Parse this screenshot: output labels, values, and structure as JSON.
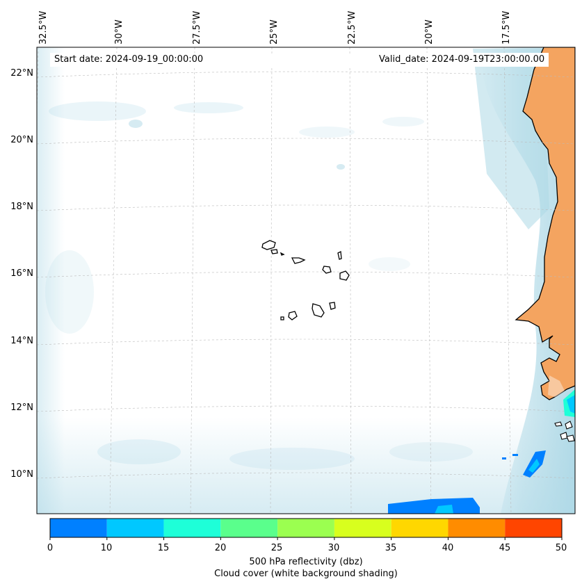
{
  "map": {
    "start_date": "Start date: 2024-09-19_00:00:00",
    "valid_date": "Valid_date: 2024-09-19T23:00:00.00",
    "longitude_labels": [
      "32.5°W",
      "30°W",
      "27.5°W",
      "25°W",
      "22.5°W",
      "20°W",
      "17.5°W"
    ],
    "latitude_labels": [
      "22°N",
      "20°N",
      "18°N",
      "16°N",
      "14°N",
      "12°N",
      "10°N"
    ],
    "cloud_color": "#add8e6",
    "land_color": "#f4a460",
    "coastline_color": "#000000"
  },
  "colorbar": {
    "ticks": [
      "0",
      "10",
      "15",
      "20",
      "25",
      "30",
      "35",
      "40",
      "45",
      "50"
    ],
    "colors": [
      "#0080ff",
      "#00c8ff",
      "#1effd8",
      "#5aff8c",
      "#9bff50",
      "#d8ff1e",
      "#ffd700",
      "#ff8c00",
      "#ff4500"
    ],
    "title_line1": "500 hPa reflectivity (dbz)",
    "title_line2": "Cloud cover (white background shading)"
  }
}
